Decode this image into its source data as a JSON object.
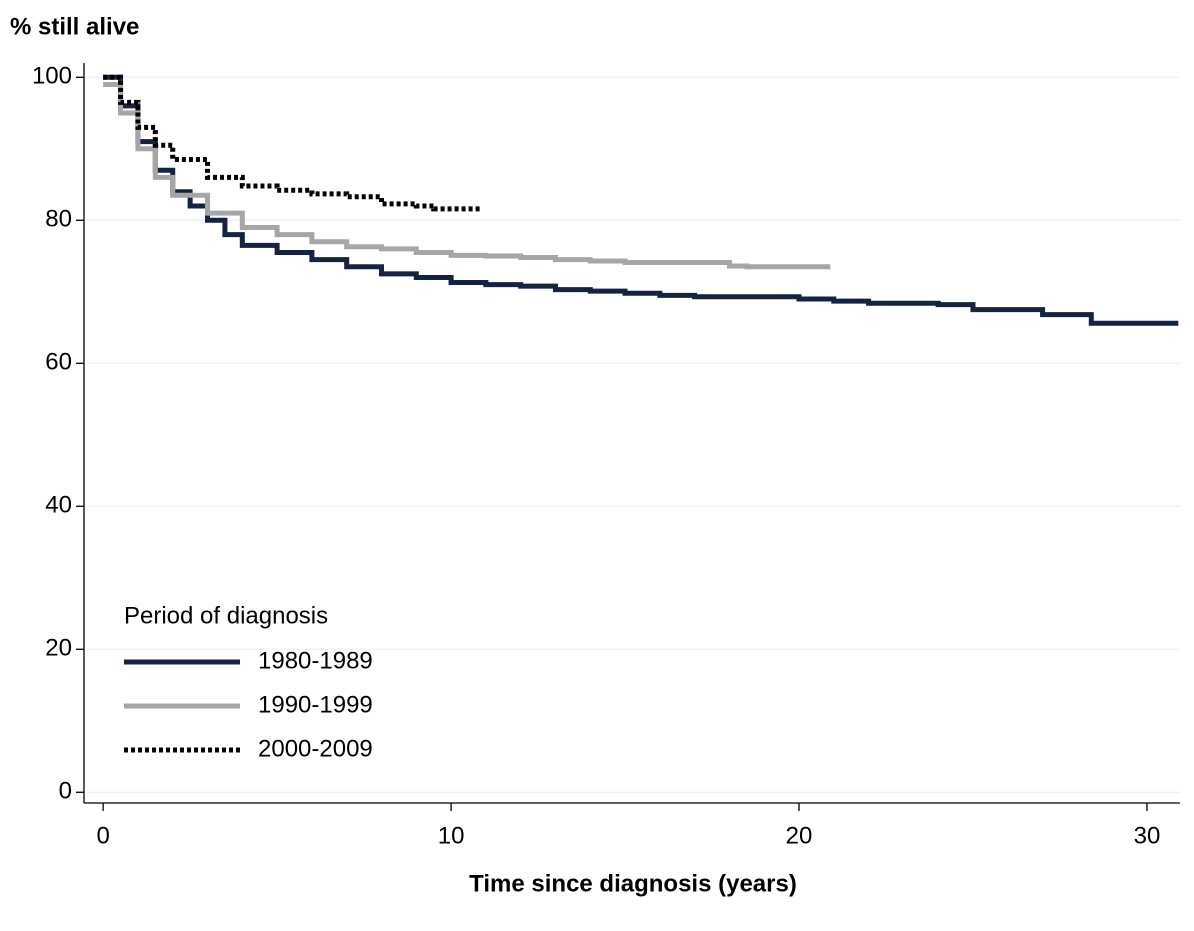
{
  "chart_data": {
    "type": "step",
    "y_label": "% still alive",
    "x_label": "Time since diagnosis (years)",
    "legend_title": "Period of diagnosis",
    "legend_position": "lower left",
    "grid": true,
    "xlim": [
      -0.55,
      30.95
    ],
    "xticks": [
      0,
      10,
      20,
      30
    ],
    "ylim": [
      -1.5,
      102
    ],
    "yticks": [
      0,
      20,
      40,
      60,
      80,
      100
    ],
    "series": [
      {
        "name": "1980-1989",
        "color": "#14233f",
        "dash": false,
        "x": [
          0,
          0.5,
          1,
          1.5,
          2,
          2.5,
          3,
          3.5,
          4,
          5,
          6,
          7,
          8,
          9,
          10,
          11,
          12,
          13,
          14,
          15,
          16,
          17,
          20,
          21,
          22,
          24,
          25,
          27,
          28.4,
          30.9
        ],
        "values": [
          100,
          96,
          91,
          87,
          84,
          82,
          80,
          78,
          76.5,
          75.5,
          74.5,
          73.5,
          72.5,
          72,
          71.3,
          71,
          70.8,
          70.3,
          70.1,
          69.8,
          69.5,
          69.3,
          69,
          68.7,
          68.4,
          68.2,
          67.5,
          66.8,
          65.6,
          65.6
        ]
      },
      {
        "name": "1990-1999",
        "color": "#a6a6a6",
        "dash": false,
        "x": [
          0,
          0.5,
          1,
          1.5,
          2,
          3,
          4,
          5,
          6,
          7,
          8,
          9,
          10,
          11,
          12,
          13,
          14,
          15,
          18,
          18.5,
          20.9
        ],
        "values": [
          99,
          95,
          90,
          86,
          83.5,
          81,
          79,
          78,
          77,
          76.3,
          76,
          75.5,
          75.1,
          75,
          74.8,
          74.5,
          74.3,
          74.1,
          73.6,
          73.5,
          73.5
        ]
      },
      {
        "name": "2000-2009",
        "color": "#000000",
        "dash": true,
        "x": [
          0,
          0.5,
          1,
          1.5,
          2,
          3,
          4,
          5,
          6,
          7,
          8,
          9,
          9.5,
          10.9
        ],
        "values": [
          100,
          96.5,
          93,
          90.5,
          88.5,
          86,
          84.8,
          84.2,
          83.7,
          83.3,
          82.3,
          82,
          81.6,
          81.6
        ]
      }
    ]
  }
}
